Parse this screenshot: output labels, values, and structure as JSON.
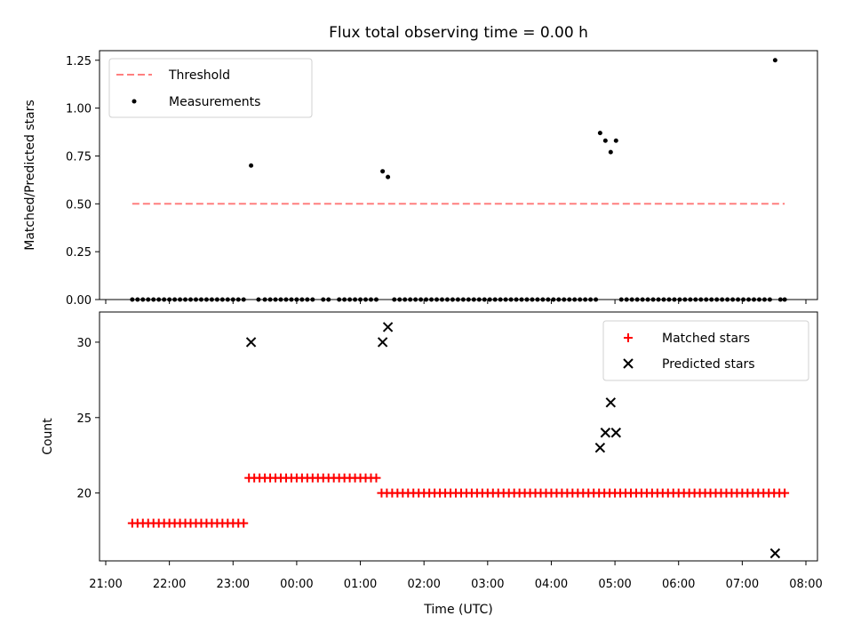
{
  "title": "Flux total observing time = 0.00 h",
  "chart_data": [
    {
      "type": "scatter",
      "ylabel": "Matched/Predicted stars",
      "xlabel": "",
      "xlim": [
        "21:00",
        "08:00"
      ],
      "ylim": [
        0,
        1.3
      ],
      "yticks": [
        0.0,
        0.25,
        0.5,
        0.75,
        1.0,
        1.25
      ],
      "ytick_labels": [
        "0.00",
        "0.25",
        "0.50",
        "0.75",
        "1.00",
        "1.25"
      ],
      "legend_position": "top-left",
      "threshold": {
        "name": "Threshold",
        "value": 0.5,
        "x_start": "21:25",
        "x_end": "07:40",
        "color": "#ff7f7f",
        "style": "dashed"
      },
      "series": [
        {
          "name": "Measurements",
          "color": "#000000",
          "marker": "dot",
          "points": [
            [
              "21:25",
              0
            ],
            [
              "21:30",
              0
            ],
            [
              "21:35",
              0
            ],
            [
              "21:40",
              0
            ],
            [
              "21:45",
              0
            ],
            [
              "21:50",
              0
            ],
            [
              "21:55",
              0
            ],
            [
              "22:00",
              0
            ],
            [
              "22:05",
              0
            ],
            [
              "22:10",
              0
            ],
            [
              "22:15",
              0
            ],
            [
              "22:20",
              0
            ],
            [
              "22:25",
              0
            ],
            [
              "22:30",
              0
            ],
            [
              "22:35",
              0
            ],
            [
              "22:40",
              0
            ],
            [
              "22:45",
              0
            ],
            [
              "22:50",
              0
            ],
            [
              "22:55",
              0
            ],
            [
              "23:00",
              0
            ],
            [
              "23:05",
              0
            ],
            [
              "23:10",
              0
            ],
            [
              "23:17",
              0.7
            ],
            [
              "23:24",
              0
            ],
            [
              "23:30",
              0
            ],
            [
              "23:35",
              0
            ],
            [
              "23:40",
              0
            ],
            [
              "23:45",
              0
            ],
            [
              "23:50",
              0
            ],
            [
              "23:55",
              0
            ],
            [
              "00:00",
              0
            ],
            [
              "00:05",
              0
            ],
            [
              "00:10",
              0
            ],
            [
              "00:15",
              0
            ],
            [
              "00:25",
              0
            ],
            [
              "00:30",
              0
            ],
            [
              "00:40",
              0
            ],
            [
              "00:45",
              0
            ],
            [
              "00:50",
              0
            ],
            [
              "00:55",
              0
            ],
            [
              "01:00",
              0
            ],
            [
              "01:05",
              0
            ],
            [
              "01:10",
              0
            ],
            [
              "01:15",
              0
            ],
            [
              "01:21",
              0.67
            ],
            [
              "01:26",
              0.64
            ],
            [
              "01:32",
              0
            ],
            [
              "01:37",
              0
            ],
            [
              "01:42",
              0
            ],
            [
              "01:47",
              0
            ],
            [
              "01:52",
              0
            ],
            [
              "01:57",
              0
            ],
            [
              "02:02",
              0
            ],
            [
              "02:07",
              0
            ],
            [
              "02:12",
              0
            ],
            [
              "02:17",
              0
            ],
            [
              "02:22",
              0
            ],
            [
              "02:27",
              0
            ],
            [
              "02:32",
              0
            ],
            [
              "02:37",
              0
            ],
            [
              "02:42",
              0
            ],
            [
              "02:47",
              0
            ],
            [
              "02:52",
              0
            ],
            [
              "02:57",
              0
            ],
            [
              "03:02",
              0
            ],
            [
              "03:07",
              0
            ],
            [
              "03:12",
              0
            ],
            [
              "03:17",
              0
            ],
            [
              "03:22",
              0
            ],
            [
              "03:27",
              0
            ],
            [
              "03:32",
              0
            ],
            [
              "03:37",
              0
            ],
            [
              "03:42",
              0
            ],
            [
              "03:47",
              0
            ],
            [
              "03:52",
              0
            ],
            [
              "03:57",
              0
            ],
            [
              "04:02",
              0
            ],
            [
              "04:07",
              0
            ],
            [
              "04:12",
              0
            ],
            [
              "04:17",
              0
            ],
            [
              "04:22",
              0
            ],
            [
              "04:27",
              0
            ],
            [
              "04:32",
              0
            ],
            [
              "04:37",
              0
            ],
            [
              "04:42",
              0
            ],
            [
              "04:46",
              0.87
            ],
            [
              "04:51",
              0.83
            ],
            [
              "04:56",
              0.77
            ],
            [
              "05:01",
              0.83
            ],
            [
              "05:06",
              0
            ],
            [
              "05:11",
              0
            ],
            [
              "05:16",
              0
            ],
            [
              "05:21",
              0
            ],
            [
              "05:26",
              0
            ],
            [
              "05:31",
              0
            ],
            [
              "05:36",
              0
            ],
            [
              "05:41",
              0
            ],
            [
              "05:46",
              0
            ],
            [
              "05:51",
              0
            ],
            [
              "05:56",
              0
            ],
            [
              "06:01",
              0
            ],
            [
              "06:06",
              0
            ],
            [
              "06:11",
              0
            ],
            [
              "06:16",
              0
            ],
            [
              "06:21",
              0
            ],
            [
              "06:26",
              0
            ],
            [
              "06:31",
              0
            ],
            [
              "06:36",
              0
            ],
            [
              "06:41",
              0
            ],
            [
              "06:46",
              0
            ],
            [
              "06:51",
              0
            ],
            [
              "06:56",
              0
            ],
            [
              "07:01",
              0
            ],
            [
              "07:06",
              0
            ],
            [
              "07:11",
              0
            ],
            [
              "07:16",
              0
            ],
            [
              "07:21",
              0
            ],
            [
              "07:26",
              0
            ],
            [
              "07:31",
              1.25
            ],
            [
              "07:36",
              0
            ],
            [
              "07:40",
              0
            ]
          ]
        }
      ]
    },
    {
      "type": "scatter",
      "ylabel": "Count",
      "xlabel": "Time (UTC)",
      "xlim": [
        "21:00",
        "08:00"
      ],
      "ylim": [
        15.5,
        32.0
      ],
      "yticks": [
        20,
        25,
        30
      ],
      "ytick_labels": [
        "20",
        "25",
        "30"
      ],
      "xticks": [
        "21:00",
        "22:00",
        "23:00",
        "00:00",
        "01:00",
        "02:00",
        "03:00",
        "04:00",
        "05:00",
        "06:00",
        "07:00",
        "08:00"
      ],
      "legend_position": "top-right",
      "series": [
        {
          "name": "Matched stars",
          "color": "#ff0000",
          "marker": "plus",
          "segments": [
            {
              "x_start": "21:25",
              "x_end": "23:10",
              "value": 18
            },
            {
              "x_start": "23:15",
              "x_end": "01:15",
              "value": 21
            },
            {
              "x_start": "01:20",
              "x_end": "07:40",
              "value": 20
            }
          ]
        },
        {
          "name": "Predicted stars",
          "color": "#000000",
          "marker": "x",
          "points": [
            [
              "23:17",
              30
            ],
            [
              "01:21",
              30
            ],
            [
              "01:26",
              31
            ],
            [
              "04:46",
              23
            ],
            [
              "04:51",
              24
            ],
            [
              "04:56",
              26
            ],
            [
              "05:01",
              24
            ],
            [
              "07:31",
              16
            ]
          ]
        }
      ]
    }
  ]
}
